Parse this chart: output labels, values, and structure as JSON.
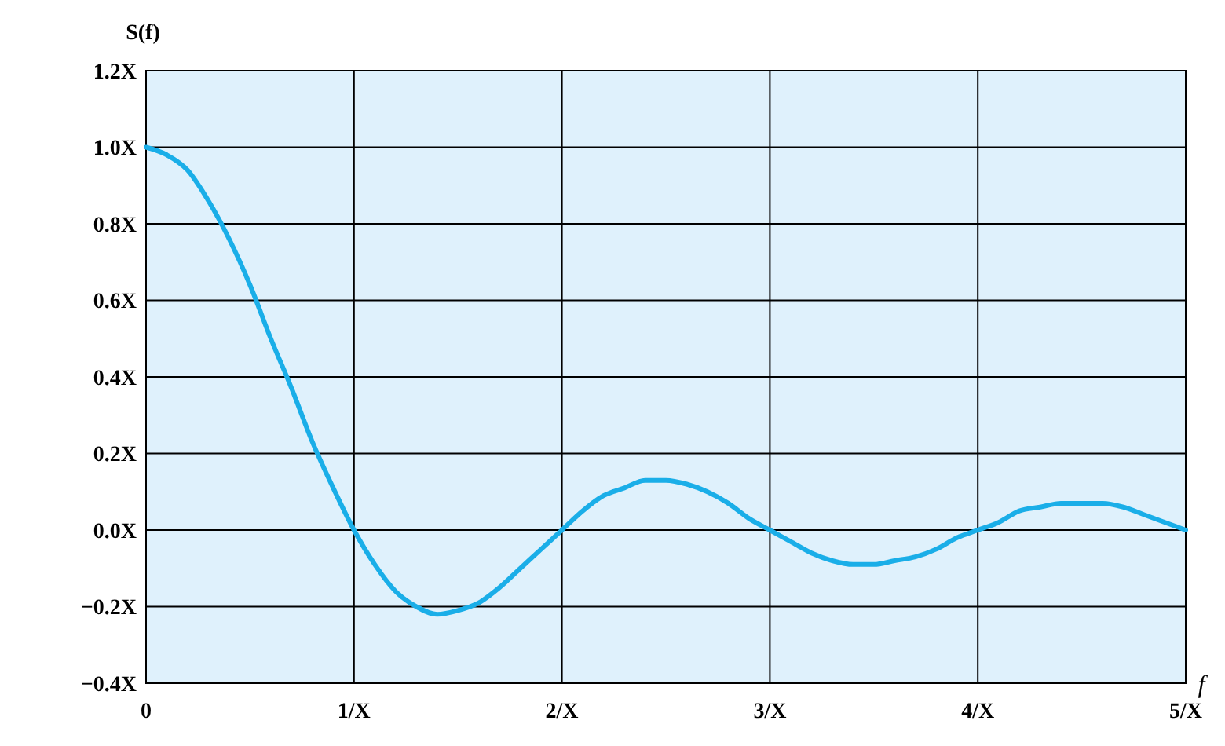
{
  "chart_data": {
    "type": "line",
    "xlabel": "f",
    "ylabel": "S(f)",
    "x": [
      0,
      0.1,
      0.2,
      0.3,
      0.4,
      0.5,
      0.6,
      0.7,
      0.8,
      0.9,
      1,
      1.1,
      1.2,
      1.3,
      1.4,
      1.5,
      1.6,
      1.7,
      1.8,
      1.9,
      2,
      2.1,
      2.2,
      2.3,
      2.4,
      2.5,
      2.6,
      2.7,
      2.8,
      2.9,
      3,
      3.1,
      3.2,
      3.3,
      3.4,
      3.5,
      3.6,
      3.7,
      3.8,
      3.9,
      4,
      4.1,
      4.2,
      4.3,
      4.4,
      4.5,
      4.6,
      4.7,
      4.8,
      4.9,
      5
    ],
    "series": [
      {
        "color": "#1aaee8",
        "values": [
          1,
          0.98,
          0.94,
          0.86,
          0.76,
          0.64,
          0.5,
          0.37,
          0.23,
          0.11,
          0,
          -0.09,
          -0.16,
          -0.2,
          -0.22,
          -0.21,
          -0.19,
          -0.15,
          -0.1,
          -0.05,
          0,
          0.05,
          0.09,
          0.11,
          0.13,
          0.13,
          0.12,
          0.1,
          0.07,
          0.03,
          0,
          -0.03,
          -0.06,
          -0.08,
          -0.09,
          -0.09,
          -0.08,
          -0.07,
          -0.05,
          -0.02,
          0,
          0.02,
          0.05,
          0.06,
          0.07,
          0.07,
          0.07,
          0.06,
          0.04,
          0.02,
          0
        ]
      }
    ],
    "xlim": [
      0,
      5
    ],
    "xticks": [
      {
        "value": 0,
        "label": "0"
      },
      {
        "value": 1,
        "label": "1/X"
      },
      {
        "value": 2,
        "label": "2/X"
      },
      {
        "value": 3,
        "label": "3/X"
      },
      {
        "value": 4,
        "label": "4/X"
      },
      {
        "value": 5,
        "label": "5/X"
      }
    ],
    "ylim": [
      -0.4,
      1.2
    ],
    "yticks": [
      {
        "value": -0.4,
        "label": "−0.4X"
      },
      {
        "value": -0.2,
        "label": "−0.2X"
      },
      {
        "value": 0,
        "label": "0.0X"
      },
      {
        "value": 0.2,
        "label": "0.2X"
      },
      {
        "value": 0.4,
        "label": "0.4X"
      },
      {
        "value": 0.6,
        "label": "0.6X"
      },
      {
        "value": 0.8,
        "label": "0.8X"
      },
      {
        "value": 1,
        "label": "1.0X"
      },
      {
        "value": 1.2,
        "label": "1.2X"
      }
    ],
    "grid": true,
    "marker": "none",
    "line_style": "solid"
  }
}
